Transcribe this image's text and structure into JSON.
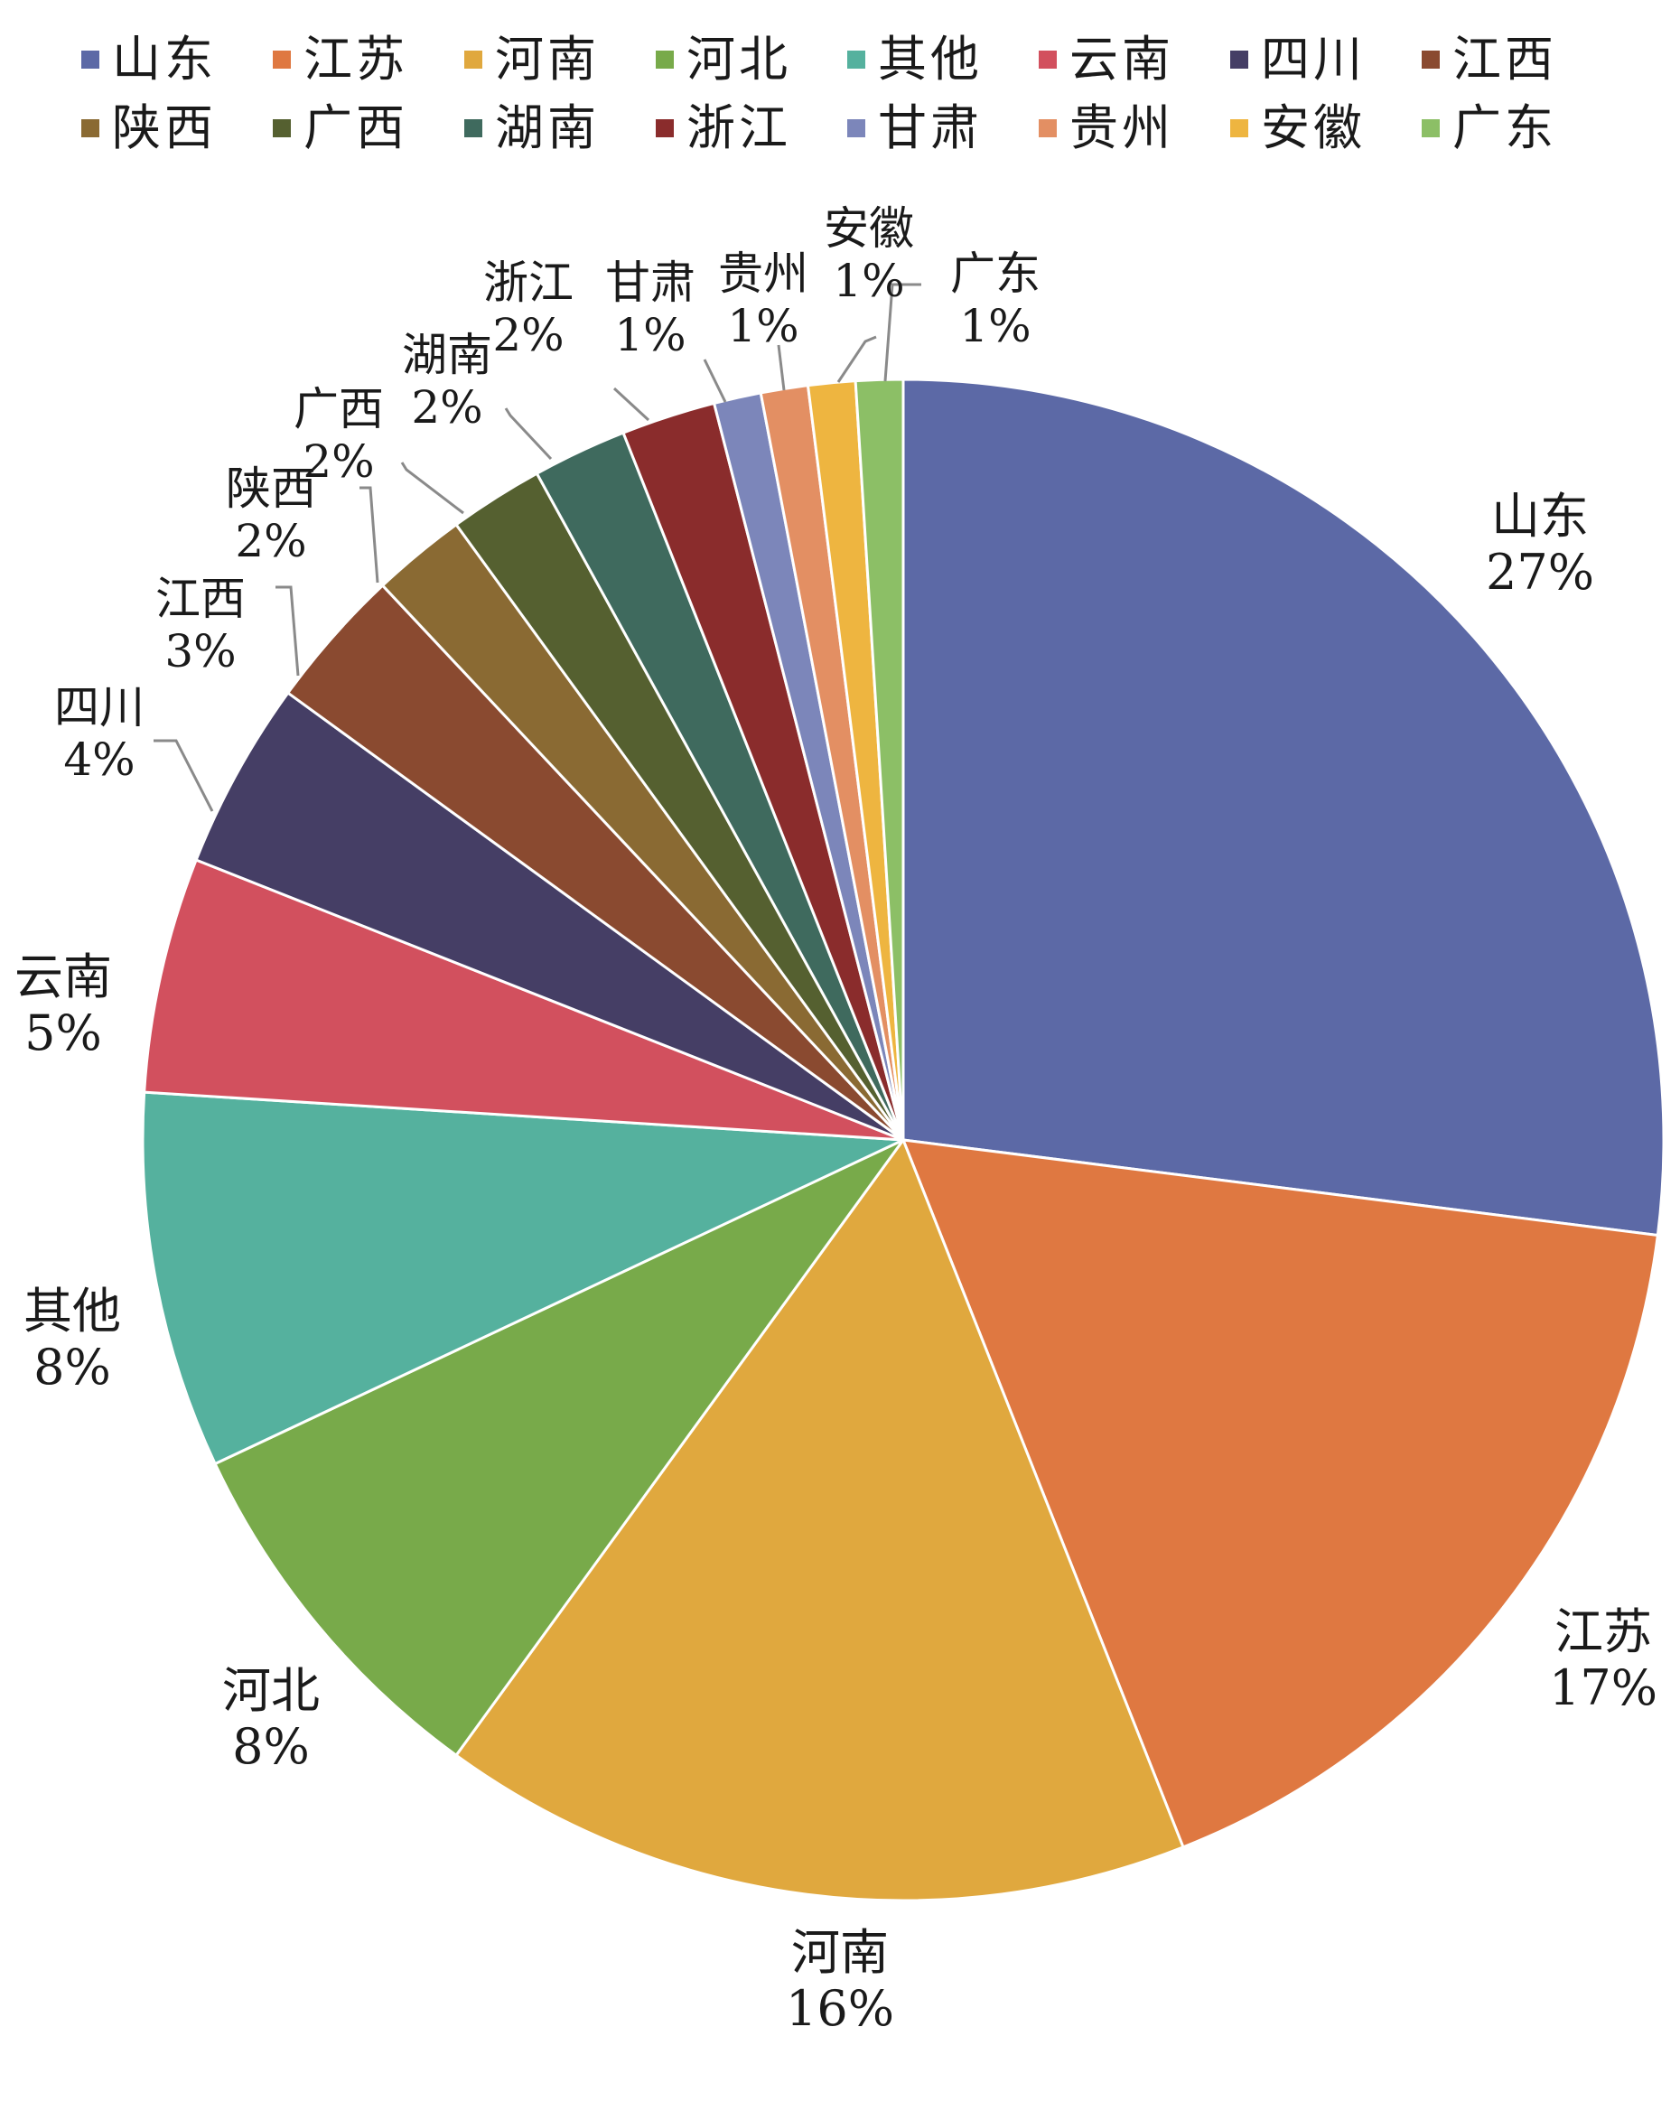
{
  "chart_data": {
    "type": "pie",
    "title": "",
    "legend_position": "top",
    "start_angle_deg": 0,
    "direction": "clockwise",
    "slices": [
      {
        "label": "山东",
        "value": 27,
        "value_label": "27%",
        "color": "#5c69a6"
      },
      {
        "label": "江苏",
        "value": 17,
        "value_label": "17%",
        "color": "#df7841"
      },
      {
        "label": "河南",
        "value": 16,
        "value_label": "16%",
        "color": "#e0a83e"
      },
      {
        "label": "河北",
        "value": 8,
        "value_label": "8%",
        "color": "#78aa4a"
      },
      {
        "label": "其他",
        "value": 8,
        "value_label": "8%",
        "color": "#55b19e"
      },
      {
        "label": "云南",
        "value": 5,
        "value_label": "5%",
        "color": "#d2505e"
      },
      {
        "label": "四川",
        "value": 4,
        "value_label": "4%",
        "color": "#453e65"
      },
      {
        "label": "江西",
        "value": 3,
        "value_label": "3%",
        "color": "#8a4a30"
      },
      {
        "label": "陕西",
        "value": 2,
        "value_label": "2%",
        "color": "#8a6a33"
      },
      {
        "label": "广西",
        "value": 2,
        "value_label": "2%",
        "color": "#556030"
      },
      {
        "label": "湖南",
        "value": 2,
        "value_label": "2%",
        "color": "#3f6a5e"
      },
      {
        "label": "浙江",
        "value": 2,
        "value_label": "2%",
        "color": "#8a2c2c"
      },
      {
        "label": "甘肃",
        "value": 1,
        "value_label": "1%",
        "color": "#7c86ba"
      },
      {
        "label": "贵州",
        "value": 1,
        "value_label": "1%",
        "color": "#e38f63"
      },
      {
        "label": "安徽",
        "value": 1,
        "value_label": "1%",
        "color": "#eeb540"
      },
      {
        "label": "广东",
        "value": 1,
        "value_label": "1%",
        "color": "#8cbf66"
      }
    ]
  }
}
